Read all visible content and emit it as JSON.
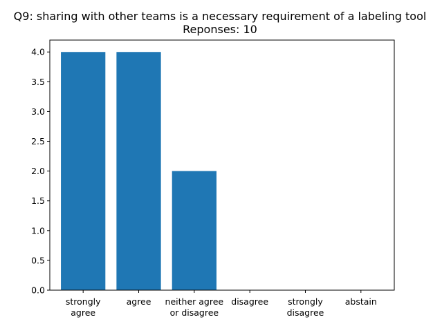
{
  "chart_data": {
    "type": "bar",
    "title": "Q9: sharing with other teams is a necessary requirement of a labeling tool",
    "subtitle": "Reponses: 10",
    "xlabel": "",
    "ylabel": "",
    "categories": [
      [
        "strongly",
        "agree"
      ],
      [
        "agree"
      ],
      [
        "neither agree",
        "or disagree"
      ],
      [
        "disagree"
      ],
      [
        "strongly",
        "disagree"
      ],
      [
        "abstain"
      ]
    ],
    "values": [
      4,
      4,
      2,
      0,
      0,
      0
    ],
    "ylim": [
      0,
      4.2
    ],
    "yticks": [
      "0.0",
      "0.5",
      "1.0",
      "1.5",
      "2.0",
      "2.5",
      "3.0",
      "3.5",
      "4.0"
    ],
    "grid": false,
    "legend": "none",
    "bar_color": "#1f77b4"
  }
}
